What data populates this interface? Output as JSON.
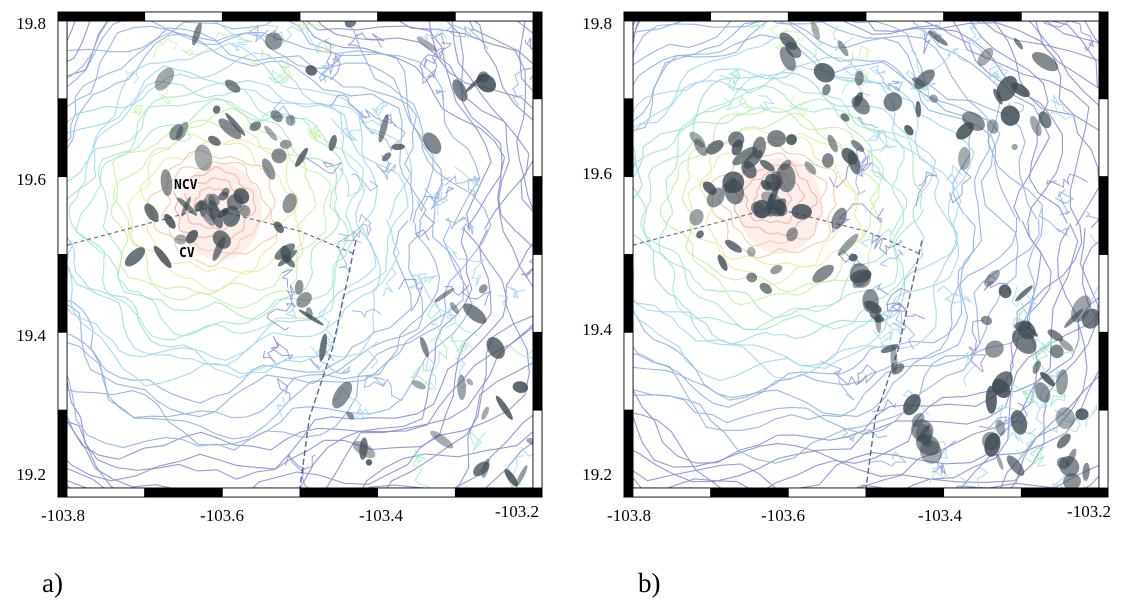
{
  "panels": [
    {
      "id": "a",
      "letter": "a)",
      "y_ticks": [
        "19.8",
        "19.6",
        "19.4",
        "19.2"
      ],
      "x_ticks": [
        "-103.8",
        "-103.6",
        "-103.4",
        "-103.2"
      ],
      "labels": [
        {
          "text": "NCV",
          "name": "ncv-label"
        },
        {
          "text": "CV",
          "name": "cv-label"
        }
      ]
    },
    {
      "id": "b",
      "letter": "b)",
      "y_ticks": [
        "19.8",
        "19.6",
        "19.4",
        "19.2"
      ],
      "x_ticks": [
        "-103.8",
        "-103.6",
        "-103.4",
        "-103.2"
      ],
      "labels": []
    }
  ],
  "map": {
    "lon_range": [
      -103.8,
      -103.2
    ],
    "lat_range": [
      19.2,
      19.8
    ],
    "contour_colors": [
      "#8a8ed6",
      "#8fb0e6",
      "#9fd6ee",
      "#9feac7",
      "#c7ef9f",
      "#efe79f",
      "#f3c59f",
      "#f1a0a0"
    ],
    "shadow_color": "#3d4a52",
    "peak_lon": -103.62,
    "peak_lat": 19.55
  }
}
